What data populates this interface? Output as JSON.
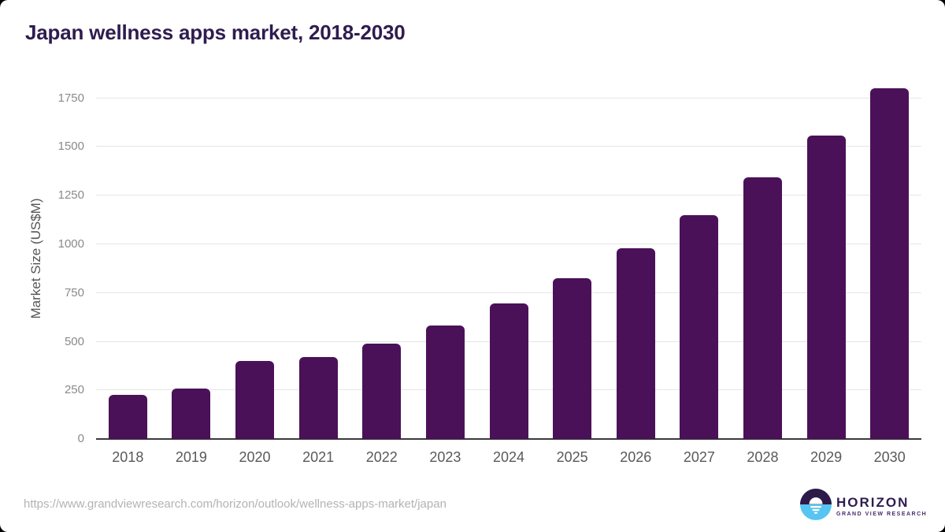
{
  "chart_data": {
    "type": "bar",
    "title": "Japan wellness apps market, 2018-2030",
    "xlabel": "",
    "ylabel": "Market Size (US$M)",
    "categories": [
      "2018",
      "2019",
      "2020",
      "2021",
      "2022",
      "2023",
      "2024",
      "2025",
      "2026",
      "2027",
      "2028",
      "2029",
      "2030"
    ],
    "values": [
      225,
      260,
      400,
      420,
      490,
      585,
      695,
      825,
      980,
      1150,
      1345,
      1560,
      1800
    ],
    "yticks": [
      0,
      250,
      500,
      750,
      1000,
      1250,
      1500,
      1750
    ],
    "ylim": [
      0,
      1850
    ],
    "grid": "horizontal",
    "legend": "none",
    "bar_color": "#4a1158"
  },
  "footer": {
    "source_url": "https://www.grandviewresearch.com/horizon/outlook/wellness-apps-market/japan",
    "logo": {
      "name": "HORIZON",
      "subtitle": "GRAND VIEW RESEARCH"
    }
  },
  "colors": {
    "bar": "#4a1158",
    "title": "#2f1c4f",
    "axis_line": "#3a3a3c",
    "gridline": "#e6e6e6",
    "tick_label": "#8a8a8a",
    "x_label": "#595959",
    "url_text": "#b3b3b3",
    "logo_dark": "#2e1a47",
    "logo_blue": "#56c5f2"
  }
}
